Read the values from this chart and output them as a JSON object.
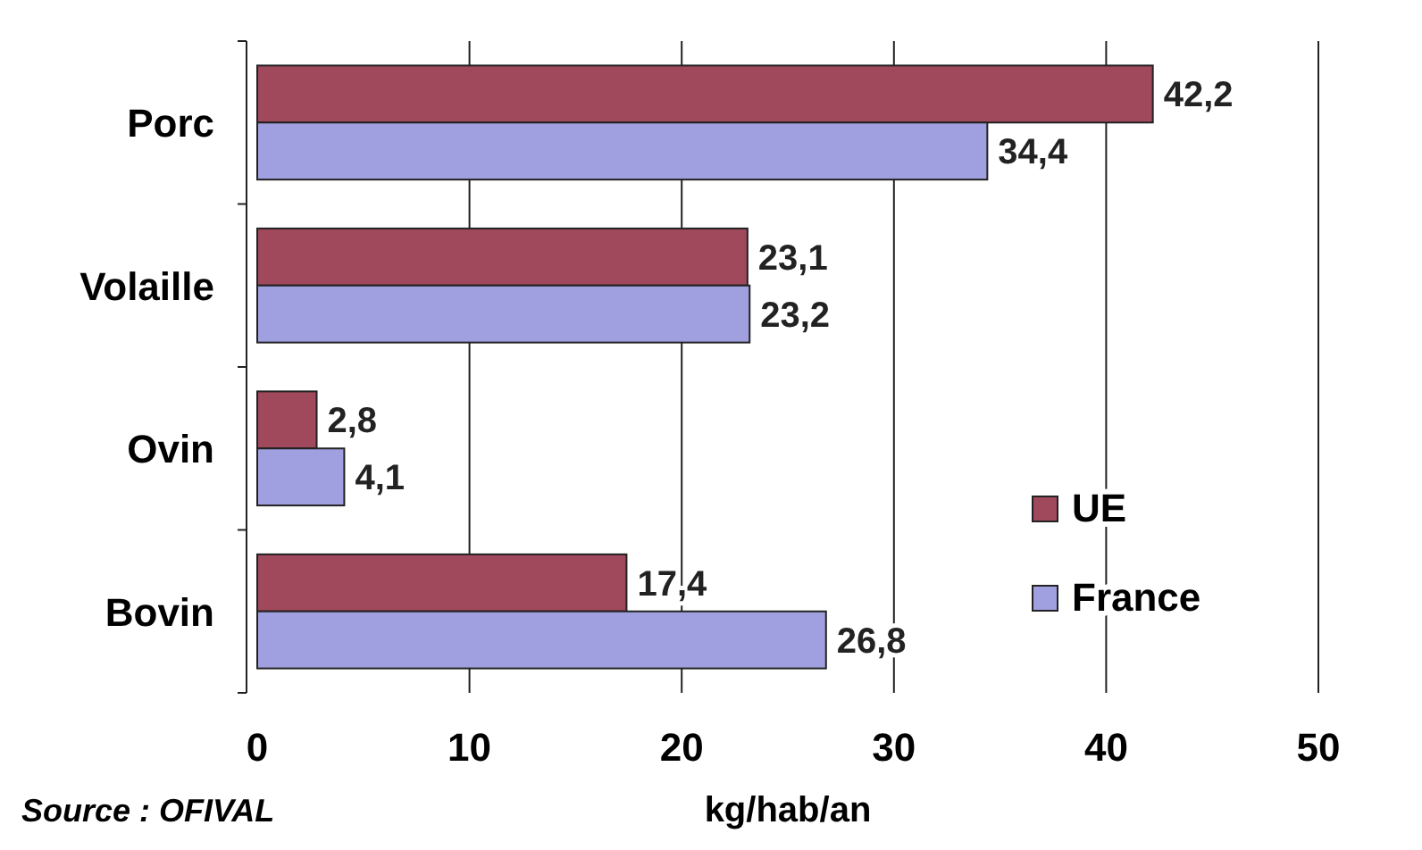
{
  "chart_data": {
    "type": "bar",
    "orientation": "horizontal",
    "categories": [
      "Porc",
      "Volaille",
      "Ovin",
      "Bovin"
    ],
    "series": [
      {
        "name": "UE",
        "color": "#a0485c",
        "values": [
          42.2,
          23.1,
          2.8,
          17.4
        ],
        "value_labels": [
          "42,2",
          "23,1",
          "2,8",
          "17,4"
        ]
      },
      {
        "name": "France",
        "color": "#a0a0e0",
        "values": [
          34.4,
          23.2,
          4.1,
          26.8
        ],
        "value_labels": [
          "34,4",
          "23,2",
          "4,1",
          "26,8"
        ]
      }
    ],
    "xlim": [
      0,
      50
    ],
    "xticks": [
      0,
      10,
      20,
      30,
      40,
      50
    ],
    "xlabel": "kg/hab/an",
    "grid": "x",
    "legend": "bottom right",
    "annotations": [
      "Source : OFIVAL"
    ]
  }
}
